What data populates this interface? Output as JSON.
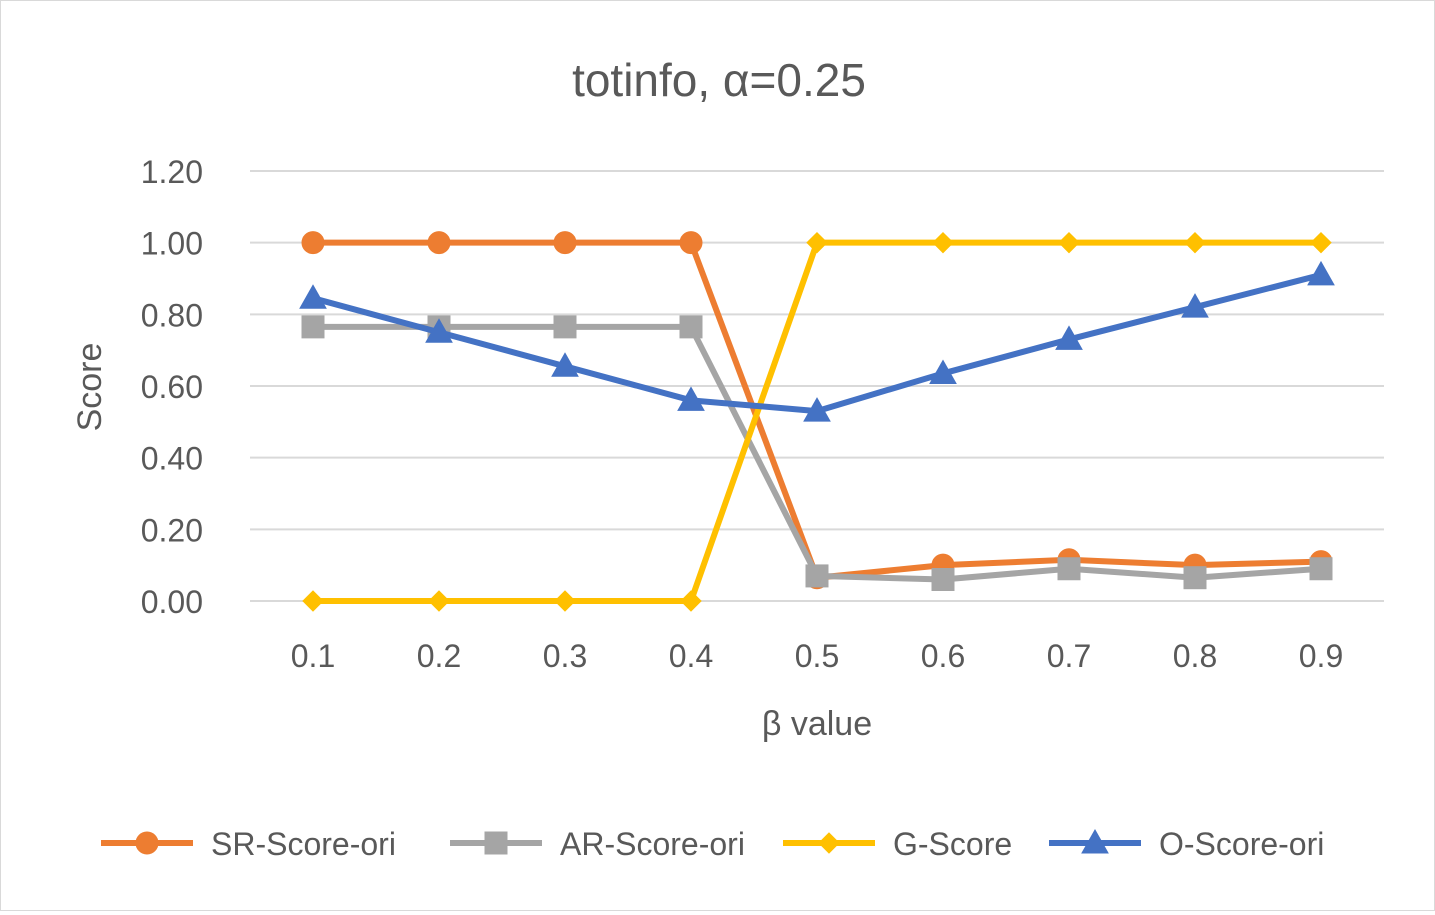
{
  "chart_data": {
    "type": "line",
    "title": "totinfo, α=0.25",
    "xlabel": "β value",
    "ylabel": "Score",
    "categories": [
      "0.1",
      "0.2",
      "0.3",
      "0.4",
      "0.5",
      "0.6",
      "0.7",
      "0.8",
      "0.9"
    ],
    "ylim": [
      0,
      1.2
    ],
    "yticks": [
      "0.00",
      "0.20",
      "0.40",
      "0.60",
      "0.80",
      "1.00",
      "1.20"
    ],
    "grid": true,
    "legend_position": "bottom",
    "series": [
      {
        "name": "SR-Score-ori",
        "color": "#ED7D31",
        "marker": "circle",
        "values": [
          1.0,
          1.0,
          1.0,
          1.0,
          0.065,
          0.1,
          0.115,
          0.1,
          0.11
        ]
      },
      {
        "name": "AR-Score-ori",
        "color": "#A5A5A5",
        "marker": "square",
        "values": [
          0.765,
          0.765,
          0.765,
          0.765,
          0.07,
          0.06,
          0.09,
          0.065,
          0.09
        ]
      },
      {
        "name": "G-Score",
        "color": "#FFC000",
        "marker": "diamond",
        "values": [
          0.0,
          0.0,
          0.0,
          0.0,
          1.0,
          1.0,
          1.0,
          1.0,
          1.0
        ]
      },
      {
        "name": "O-Score-ori",
        "color": "#4472C4",
        "marker": "triangle",
        "values": [
          0.845,
          0.75,
          0.655,
          0.56,
          0.53,
          0.635,
          0.73,
          0.82,
          0.91
        ]
      }
    ]
  }
}
